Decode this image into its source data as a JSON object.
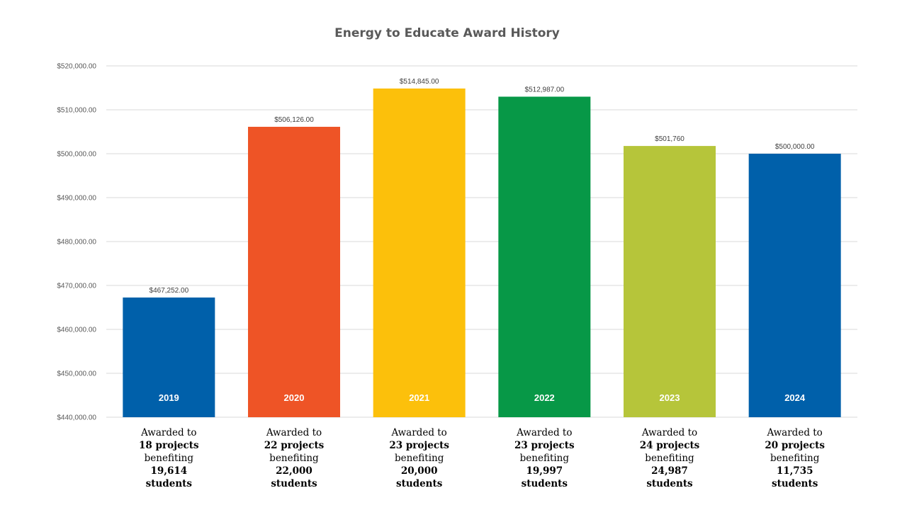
{
  "chart_data": {
    "type": "bar",
    "title": "Energy to Educate Award History",
    "categories": [
      "2019",
      "2020",
      "2021",
      "2022",
      "2023",
      "2024"
    ],
    "values": [
      467252,
      506126,
      514845,
      512987,
      501760,
      500000
    ],
    "data_labels": [
      "$467,252.00",
      "$506,126.00",
      "$514,845.00",
      "$512,987.00",
      "$501,760",
      "$500,000.00"
    ],
    "colors": [
      "#0060AA",
      "#EE5426",
      "#FCC00B",
      "#079847",
      "#B6C53A",
      "#0060AA"
    ],
    "ylim": [
      440000,
      520000
    ],
    "yticks": [
      {
        "value": 440000,
        "label": "$440,000.00"
      },
      {
        "value": 450000,
        "label": "$450,000.00"
      },
      {
        "value": 460000,
        "label": "$460,000.00"
      },
      {
        "value": 470000,
        "label": "$470,000.00"
      },
      {
        "value": 480000,
        "label": "$480,000.00"
      },
      {
        "value": 490000,
        "label": "$490,000.00"
      },
      {
        "value": 500000,
        "label": "$500,000.00"
      },
      {
        "value": 510000,
        "label": "$510,000.00"
      },
      {
        "value": 520000,
        "label": "$520,000.00"
      }
    ],
    "xlabel": "",
    "ylabel": "",
    "grid": true,
    "legend": "none",
    "annotations": [
      {
        "line1": "Awarded to",
        "line2": "18 projects",
        "line3": "benefiting",
        "line4": "19,614",
        "line5": "students"
      },
      {
        "line1": "Awarded to",
        "line2": "22 projects",
        "line3": "benefiting",
        "line4": "22,000",
        "line5": "students"
      },
      {
        "line1": "Awarded to",
        "line2": "23 projects",
        "line3": "benefiting",
        "line4": "20,000",
        "line5": "students"
      },
      {
        "line1": "Awarded to",
        "line2": "23 projects",
        "line3": "benefiting",
        "line4": "19,997",
        "line5": "students"
      },
      {
        "line1": "Awarded to",
        "line2": "24 projects",
        "line3": "benefiting",
        "line4": "24,987",
        "line5": "students"
      },
      {
        "line1": "Awarded to",
        "line2": "20 projects",
        "line3": "benefiting",
        "line4": "11,735",
        "line5": "students"
      }
    ]
  }
}
